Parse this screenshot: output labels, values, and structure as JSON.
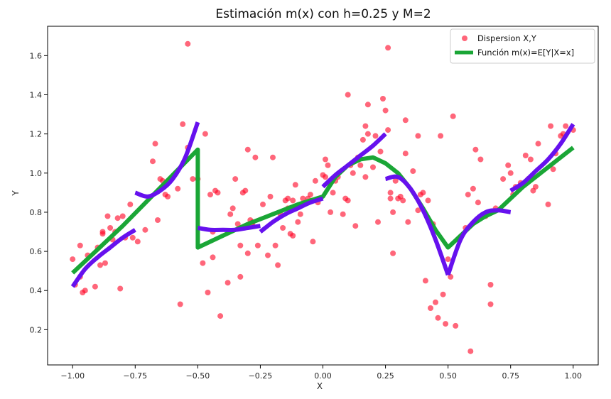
{
  "chart_data": {
    "type": "scatter",
    "title": "Estimación m(x) con h=0.25 y M=2",
    "xlabel": "X",
    "ylabel": "Y",
    "xlim": [
      -1.1,
      1.1
    ],
    "ylim": [
      0.02,
      1.75
    ],
    "xticks": [
      -1.0,
      -0.75,
      -0.5,
      -0.25,
      0.0,
      0.25,
      0.5,
      0.75,
      1.0
    ],
    "xtick_labels": [
      "−1.00",
      "−0.75",
      "−0.50",
      "−0.25",
      "0.00",
      "0.25",
      "0.50",
      "0.75",
      "1.00"
    ],
    "yticks": [
      0.2,
      0.4,
      0.6,
      0.8,
      1.0,
      1.2,
      1.4,
      1.6
    ],
    "ytick_labels": [
      "0.2",
      "0.4",
      "0.6",
      "0.8",
      "1.0",
      "1.2",
      "1.4",
      "1.6"
    ],
    "grid": false,
    "legend_position": "top-right",
    "legend": [
      {
        "label": "Dispersion X,Y",
        "kind": "marker",
        "color": "#ff0022"
      },
      {
        "label": "Función m(x)=E[Y|X=x]",
        "kind": "line",
        "color": "#1aa636"
      }
    ],
    "colors": {
      "scatter": "#ff0022",
      "m_line": "#1aa636",
      "local_fits": "#6611ee"
    },
    "scatter_points": [
      [
        -1.0,
        0.56
      ],
      [
        -0.99,
        0.43
      ],
      [
        -0.97,
        0.63
      ],
      [
        -0.97,
        0.47
      ],
      [
        -0.96,
        0.39
      ],
      [
        -0.95,
        0.4
      ],
      [
        -0.94,
        0.58
      ],
      [
        -0.91,
        0.42
      ],
      [
        -0.9,
        0.62
      ],
      [
        -0.89,
        0.53
      ],
      [
        -0.88,
        0.7
      ],
      [
        -0.88,
        0.69
      ],
      [
        -0.87,
        0.54
      ],
      [
        -0.86,
        0.78
      ],
      [
        -0.85,
        0.72
      ],
      [
        -0.84,
        0.66
      ],
      [
        -0.83,
        0.7
      ],
      [
        -0.82,
        0.77
      ],
      [
        -0.81,
        0.41
      ],
      [
        -0.8,
        0.78
      ],
      [
        -0.79,
        0.67
      ],
      [
        -0.77,
        0.84
      ],
      [
        -0.76,
        0.67
      ],
      [
        -0.74,
        0.65
      ],
      [
        -0.71,
        0.71
      ],
      [
        -0.68,
        1.06
      ],
      [
        -0.67,
        1.15
      ],
      [
        -0.66,
        0.76
      ],
      [
        -0.65,
        0.97
      ],
      [
        -0.64,
        0.96
      ],
      [
        -0.63,
        0.89
      ],
      [
        -0.62,
        0.88
      ],
      [
        -0.58,
        0.92
      ],
      [
        -0.57,
        0.33
      ],
      [
        -0.56,
        1.25
      ],
      [
        -0.54,
        1.66
      ],
      [
        -0.54,
        1.13
      ],
      [
        -0.52,
        0.97
      ],
      [
        -0.5,
        0.97
      ],
      [
        -0.48,
        0.54
      ],
      [
        -0.47,
        1.2
      ],
      [
        -0.46,
        0.39
      ],
      [
        -0.45,
        0.89
      ],
      [
        -0.44,
        0.7
      ],
      [
        -0.44,
        0.57
      ],
      [
        -0.43,
        0.91
      ],
      [
        -0.42,
        0.9
      ],
      [
        -0.41,
        0.27
      ],
      [
        -0.38,
        0.44
      ],
      [
        -0.37,
        0.79
      ],
      [
        -0.36,
        0.82
      ],
      [
        -0.35,
        0.97
      ],
      [
        -0.34,
        0.74
      ],
      [
        -0.33,
        0.47
      ],
      [
        -0.33,
        0.63
      ],
      [
        -0.32,
        0.9
      ],
      [
        -0.31,
        0.91
      ],
      [
        -0.3,
        1.12
      ],
      [
        -0.3,
        0.59
      ],
      [
        -0.29,
        0.76
      ],
      [
        -0.28,
        0.75
      ],
      [
        -0.28,
        0.73
      ],
      [
        -0.27,
        1.08
      ],
      [
        -0.26,
        0.63
      ],
      [
        -0.24,
        0.84
      ],
      [
        -0.22,
        0.58
      ],
      [
        -0.21,
        0.88
      ],
      [
        -0.2,
        1.08
      ],
      [
        -0.19,
        0.63
      ],
      [
        -0.18,
        0.53
      ],
      [
        -0.17,
        0.79
      ],
      [
        -0.16,
        0.72
      ],
      [
        -0.15,
        0.86
      ],
      [
        -0.14,
        0.87
      ],
      [
        -0.14,
        0.82
      ],
      [
        -0.13,
        0.69
      ],
      [
        -0.12,
        0.68
      ],
      [
        -0.12,
        0.86
      ],
      [
        -0.11,
        0.94
      ],
      [
        -0.1,
        0.75
      ],
      [
        -0.09,
        0.79
      ],
      [
        -0.08,
        0.87
      ],
      [
        -0.06,
        0.87
      ],
      [
        -0.05,
        0.89
      ],
      [
        -0.04,
        0.65
      ],
      [
        -0.03,
        0.96
      ],
      [
        -0.02,
        0.85
      ],
      [
        0.0,
        0.99
      ],
      [
        0.01,
        1.07
      ],
      [
        0.01,
        0.98
      ],
      [
        0.02,
        1.04
      ],
      [
        0.03,
        0.8
      ],
      [
        0.04,
        0.9
      ],
      [
        0.05,
        0.96
      ],
      [
        0.06,
        0.98
      ],
      [
        0.08,
        0.79
      ],
      [
        0.09,
        0.87
      ],
      [
        0.1,
        1.4
      ],
      [
        0.1,
        0.86
      ],
      [
        0.11,
        1.04
      ],
      [
        0.12,
        1.0
      ],
      [
        0.13,
        0.73
      ],
      [
        0.14,
        1.08
      ],
      [
        0.15,
        1.04
      ],
      [
        0.16,
        1.17
      ],
      [
        0.17,
        1.24
      ],
      [
        0.17,
        0.98
      ],
      [
        0.18,
        1.2
      ],
      [
        0.18,
        1.35
      ],
      [
        0.2,
        1.03
      ],
      [
        0.21,
        1.19
      ],
      [
        0.22,
        0.75
      ],
      [
        0.23,
        1.11
      ],
      [
        0.24,
        1.38
      ],
      [
        0.25,
        1.32
      ],
      [
        0.26,
        1.22
      ],
      [
        0.26,
        1.64
      ],
      [
        0.27,
        0.9
      ],
      [
        0.27,
        0.87
      ],
      [
        0.28,
        0.8
      ],
      [
        0.28,
        0.59
      ],
      [
        0.29,
        0.96
      ],
      [
        0.3,
        0.87
      ],
      [
        0.31,
        0.88
      ],
      [
        0.32,
        0.86
      ],
      [
        0.33,
        1.27
      ],
      [
        0.33,
        1.1
      ],
      [
        0.34,
        0.75
      ],
      [
        0.36,
        1.01
      ],
      [
        0.38,
        1.19
      ],
      [
        0.38,
        0.81
      ],
      [
        0.39,
        0.89
      ],
      [
        0.4,
        0.9
      ],
      [
        0.41,
        0.45
      ],
      [
        0.42,
        0.86
      ],
      [
        0.43,
        0.31
      ],
      [
        0.44,
        0.74
      ],
      [
        0.45,
        0.34
      ],
      [
        0.46,
        0.26
      ],
      [
        0.47,
        1.19
      ],
      [
        0.48,
        0.38
      ],
      [
        0.49,
        0.23
      ],
      [
        0.5,
        0.56
      ],
      [
        0.51,
        0.47
      ],
      [
        0.52,
        1.29
      ],
      [
        0.53,
        0.22
      ],
      [
        0.57,
        0.72
      ],
      [
        0.58,
        0.89
      ],
      [
        0.59,
        0.09
      ],
      [
        0.6,
        0.92
      ],
      [
        0.61,
        1.12
      ],
      [
        0.62,
        0.85
      ],
      [
        0.63,
        1.07
      ],
      [
        0.65,
        0.78
      ],
      [
        0.67,
        0.43
      ],
      [
        0.67,
        0.33
      ],
      [
        0.69,
        0.82
      ],
      [
        0.72,
        0.97
      ],
      [
        0.74,
        1.04
      ],
      [
        0.75,
        1.0
      ],
      [
        0.76,
        0.89
      ],
      [
        0.77,
        0.93
      ],
      [
        0.78,
        0.92
      ],
      [
        0.79,
        0.95
      ],
      [
        0.81,
        1.09
      ],
      [
        0.82,
        0.97
      ],
      [
        0.83,
        1.07
      ],
      [
        0.84,
        0.91
      ],
      [
        0.85,
        0.93
      ],
      [
        0.86,
        1.15
      ],
      [
        0.9,
        0.84
      ],
      [
        0.91,
        1.24
      ],
      [
        0.92,
        1.02
      ],
      [
        0.93,
        1.1
      ],
      [
        0.95,
        1.19
      ],
      [
        0.96,
        1.2
      ],
      [
        0.97,
        1.24
      ],
      [
        1.0,
        1.22
      ]
    ],
    "m_line": [
      [
        -1.0,
        0.49
      ],
      [
        -0.9,
        0.61
      ],
      [
        -0.8,
        0.73
      ],
      [
        -0.7,
        0.86
      ],
      [
        -0.6,
        0.99
      ],
      [
        -0.5,
        1.12
      ],
      [
        -0.5,
        0.62
      ],
      [
        -0.4,
        0.68
      ],
      [
        -0.3,
        0.74
      ],
      [
        -0.2,
        0.79
      ],
      [
        -0.1,
        0.84
      ],
      [
        0.0,
        0.88
      ],
      [
        0.05,
        0.98
      ],
      [
        0.1,
        1.04
      ],
      [
        0.15,
        1.07
      ],
      [
        0.2,
        1.08
      ],
      [
        0.25,
        1.05
      ],
      [
        0.3,
        1.0
      ],
      [
        0.35,
        0.92
      ],
      [
        0.4,
        0.82
      ],
      [
        0.45,
        0.71
      ],
      [
        0.5,
        0.62
      ],
      [
        0.55,
        0.68
      ],
      [
        0.6,
        0.74
      ],
      [
        0.65,
        0.78
      ],
      [
        0.7,
        0.81
      ],
      [
        0.8,
        0.93
      ],
      [
        0.9,
        1.03
      ],
      [
        1.0,
        1.13
      ]
    ],
    "local_fits": [
      [
        [
          -1.0,
          0.42
        ],
        [
          -0.95,
          0.51
        ],
        [
          -0.9,
          0.57
        ],
        [
          -0.85,
          0.62
        ],
        [
          -0.8,
          0.67
        ],
        [
          -0.75,
          0.71
        ]
      ],
      [
        [
          -0.75,
          0.9
        ],
        [
          -0.7,
          0.88
        ],
        [
          -0.65,
          0.91
        ],
        [
          -0.6,
          0.97
        ],
        [
          -0.55,
          1.08
        ],
        [
          -0.5,
          1.26
        ]
      ],
      [
        [
          -0.5,
          0.72
        ],
        [
          -0.45,
          0.71
        ],
        [
          -0.4,
          0.71
        ],
        [
          -0.35,
          0.71
        ],
        [
          -0.3,
          0.72
        ],
        [
          -0.25,
          0.73
        ]
      ],
      [
        [
          -0.25,
          0.7
        ],
        [
          -0.2,
          0.75
        ],
        [
          -0.15,
          0.79
        ],
        [
          -0.1,
          0.82
        ],
        [
          -0.05,
          0.85
        ],
        [
          0.0,
          0.87
        ]
      ],
      [
        [
          0.0,
          0.93
        ],
        [
          0.05,
          0.99
        ],
        [
          0.1,
          1.04
        ],
        [
          0.15,
          1.09
        ],
        [
          0.2,
          1.14
        ],
        [
          0.25,
          1.2
        ]
      ],
      [
        [
          0.25,
          0.97
        ],
        [
          0.3,
          0.98
        ],
        [
          0.35,
          0.92
        ],
        [
          0.4,
          0.81
        ],
        [
          0.45,
          0.66
        ],
        [
          0.5,
          0.48
        ]
      ],
      [
        [
          0.5,
          0.48
        ],
        [
          0.55,
          0.66
        ],
        [
          0.6,
          0.75
        ],
        [
          0.65,
          0.8
        ],
        [
          0.7,
          0.81
        ],
        [
          0.75,
          0.8
        ]
      ],
      [
        [
          0.75,
          0.91
        ],
        [
          0.8,
          0.95
        ],
        [
          0.85,
          1.01
        ],
        [
          0.9,
          1.07
        ],
        [
          0.95,
          1.15
        ],
        [
          1.0,
          1.25
        ]
      ]
    ]
  }
}
